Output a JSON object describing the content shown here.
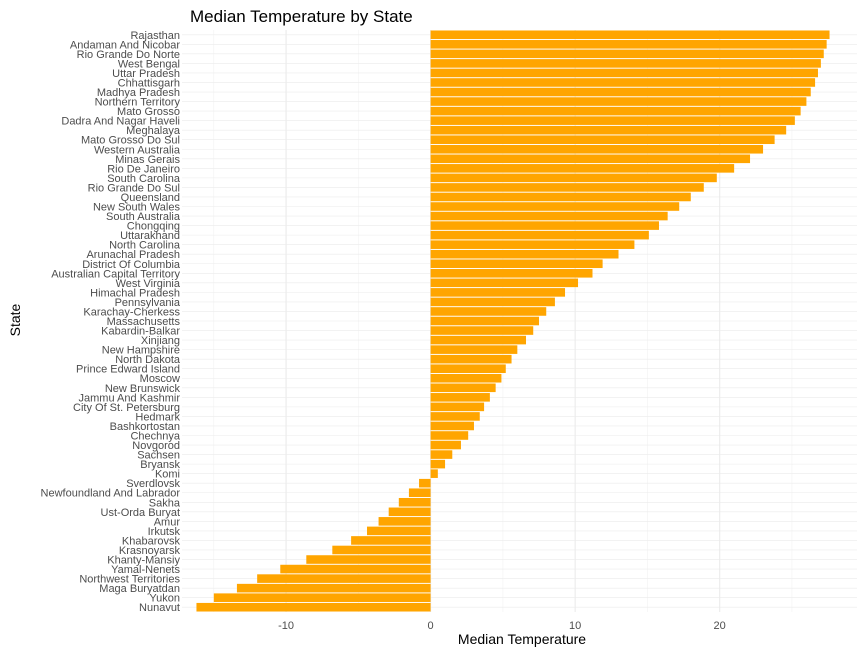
{
  "chart_data": {
    "type": "bar",
    "orientation": "horizontal",
    "title": "Median Temperature by State",
    "xlabel": "Median Temperature",
    "ylabel": "State",
    "xlim": [
      -17.2,
      29.5
    ],
    "xticks": [
      -10,
      0,
      10,
      20
    ],
    "xtick_labels": [
      "-10",
      "0",
      "10",
      "20"
    ],
    "grid": true,
    "legend": "none",
    "bar_color": "#FFA500",
    "categories": [
      "Nunavut",
      "Yukon",
      "Maga Buryatdan",
      "Northwest Territories",
      "Yamal-Nenets",
      "Khanty-Mansiy",
      "Krasnoyarsk",
      "Khabarovsk",
      "Irkutsk",
      "Amur",
      "Ust-Orda Buryat",
      "Sakha",
      "Newfoundland And Labrador",
      "Sverdlovsk",
      "Komi",
      "Bryansk",
      "Sachsen",
      "Novgorod",
      "Chechnya",
      "Bashkortostan",
      "Hedmark",
      "City Of St. Petersburg",
      "Jammu And Kashmir",
      "New Brunswick",
      "Moscow",
      "Prince Edward Island",
      "North Dakota",
      "New Hampshire",
      "Xinjiang",
      "Kabardin-Balkar",
      "Massachusetts",
      "Karachay-Cherkess",
      "Pennsylvania",
      "Himachal Pradesh",
      "West Virginia",
      "Australian Capital Territory",
      "District Of Columbia",
      "Arunachal Pradesh",
      "North Carolina",
      "Uttarakhand",
      "Chongqing",
      "South Australia",
      "New South Wales",
      "Queensland",
      "Rio Grande Do Sul",
      "South Carolina",
      "Rio De Janeiro",
      "Minas Gerais",
      "Western Australia",
      "Mato Grosso Do Sul",
      "Meghalaya",
      "Dadra And Nagar Haveli",
      "Mato Grosso",
      "Northern Territory",
      "Madhya Pradesh",
      "Chhattisgarh",
      "Uttar Pradesh",
      "West Bengal",
      "Rio Grande Do Norte",
      "Andaman And Nicobar",
      "Rajasthan"
    ],
    "values": [
      -16.2,
      -15.0,
      -13.4,
      -12.0,
      -10.4,
      -8.6,
      -6.8,
      -5.5,
      -4.4,
      -3.6,
      -2.9,
      -2.2,
      -1.5,
      -0.8,
      0.5,
      1.0,
      1.5,
      2.1,
      2.6,
      3.0,
      3.4,
      3.7,
      4.1,
      4.5,
      4.9,
      5.2,
      5.6,
      6.0,
      6.6,
      7.1,
      7.5,
      8.0,
      8.6,
      9.3,
      10.2,
      11.2,
      11.9,
      13.0,
      14.1,
      15.1,
      15.8,
      16.4,
      17.2,
      18.0,
      18.9,
      19.8,
      21.0,
      22.1,
      23.0,
      23.8,
      24.6,
      25.2,
      25.6,
      26.0,
      26.3,
      26.6,
      26.8,
      27.0,
      27.2,
      27.4,
      27.6
    ]
  }
}
